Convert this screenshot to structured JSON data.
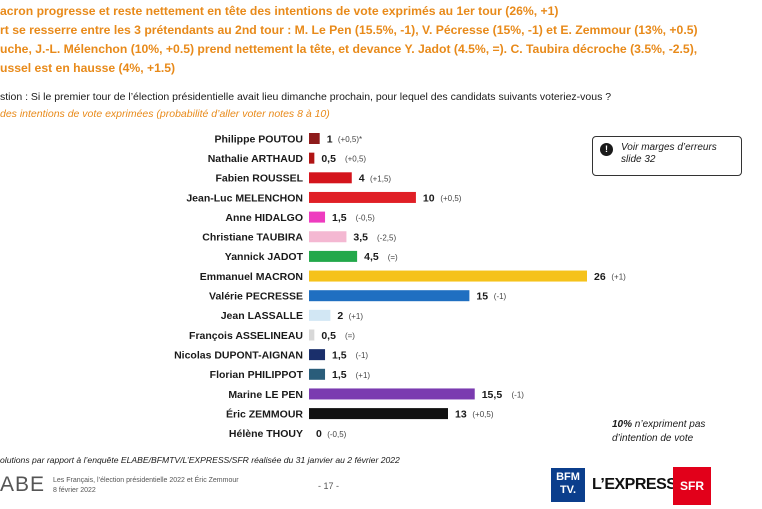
{
  "headline": {
    "lines": [
      "acron progresse et reste nettement en tête des intentions de vote exprimés au 1er tour (26%, +1)",
      "rt se resserre entre les 3 prétendants au 2nd tour : M. Le Pen (15.5%, -1), V. Pécresse (15%, -1) et E. Zemmour (13%, +0.5)",
      "uche, J.-L. Mélenchon (10%, +0.5) prend nettement la tête, et devance Y. Jadot (4.5%, =). C. Taubira décroche (3.5%, -2.5),",
      "ussel est en hausse (4%, +1.5)"
    ]
  },
  "question": "stion : Si le premier tour de l’élection présidentielle avait lieu dimanche prochain, pour lequel des candidats suivants voteriez-vous ?",
  "subtitle": "des intentions de vote exprimées (probabilité d’aller voter notes 8 à 10)",
  "note_box": {
    "icon": "info-icon",
    "icon_glyph": "!",
    "text_line1": "Voir marges d’erreurs",
    "text_line2": "slide 32"
  },
  "side_note": {
    "bold": "10%",
    "line1_rest": " n’expriment pas",
    "line2": "d’intention de vote"
  },
  "footnote": "olutions par rapport à l’enquête ELABE/BFMTV/L’EXPRESS/SFR réalisée du 31 janvier au 2 février 2022",
  "footer": {
    "logo": "ABE",
    "meta_line1": "Les Français, l’élection présidentielle 2022 et Éric Zemmour",
    "meta_line2": "8 février 2022",
    "page": "- 17 -",
    "bfm_line1": "BFM",
    "bfm_line2": "TV.",
    "express": "L’EXPRESS",
    "sfr": "SFR"
  },
  "chart_data": {
    "type": "bar",
    "orientation": "horizontal",
    "title": "des intentions de vote exprimées (probabilité d’aller voter notes 8 à 10)",
    "xlabel": "",
    "ylabel": "",
    "xlim": [
      0,
      26
    ],
    "grid": false,
    "categories": [
      "Philippe POUTOU",
      "Nathalie ARTHAUD",
      "Fabien ROUSSEL",
      "Jean-Luc MELENCHON",
      "Anne HIDALGO",
      "Christiane TAUBIRA",
      "Yannick JADOT",
      "Emmanuel MACRON",
      "Valérie PECRESSE",
      "Jean LASSALLE",
      "François ASSELINEAU",
      "Nicolas DUPONT-AIGNAN",
      "Florian PHILIPPOT",
      "Marine LE PEN",
      "Éric ZEMMOUR",
      "Hélène THOUY"
    ],
    "values": [
      1,
      0.5,
      4,
      10,
      1.5,
      3.5,
      4.5,
      26,
      15,
      2,
      0.5,
      1.5,
      1.5,
      15.5,
      13,
      0
    ],
    "value_labels": [
      "1",
      "0,5",
      "4",
      "10",
      "1,5",
      "3,5",
      "4,5",
      "26",
      "15",
      "2",
      "0,5",
      "1,5",
      "1,5",
      "15,5",
      "13",
      "0"
    ],
    "change_labels": [
      "(+0,5)*",
      "(+0,5)",
      "(+1,5)",
      "(+0,5)",
      "(-0,5)",
      "(-2,5)",
      "(=)",
      "(+1)",
      "(-1)",
      "(+1)",
      "(=)",
      "(-1)",
      "(+1)",
      "(-1)",
      "(+0,5)",
      "(-0,5)"
    ],
    "colors": [
      "#8e1b1b",
      "#b01414",
      "#d4141c",
      "#e01f26",
      "#ee3bbf",
      "#f4b8d2",
      "#22a84a",
      "#f5c21b",
      "#1f6fc1",
      "#d2e7f4",
      "#d8d8d8",
      "#1a2f6b",
      "#2a5d7a",
      "#7b3bb0",
      "#111111",
      "#999999"
    ]
  }
}
